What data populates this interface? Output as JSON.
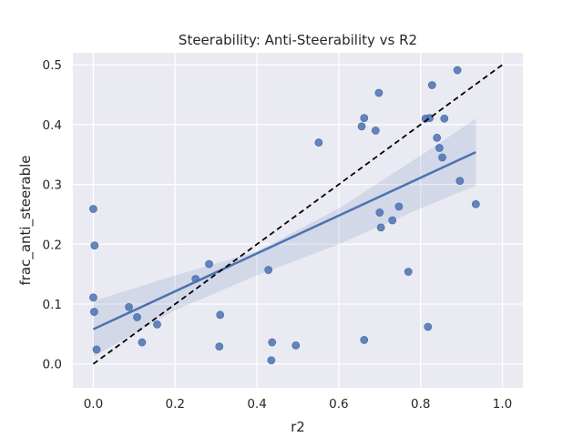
{
  "chart_data": {
    "type": "scatter",
    "title": "Steerability: Anti-Steerability vs R2",
    "xlabel": "r2",
    "ylabel": "frac_anti_steerable",
    "xlim": [
      -0.05,
      1.05
    ],
    "ylim": [
      -0.04,
      0.52
    ],
    "xticks": [
      0.0,
      0.2,
      0.4,
      0.6,
      0.8,
      1.0
    ],
    "xtick_labels": [
      "0.0",
      "0.2",
      "0.4",
      "0.6",
      "0.8",
      "1.0"
    ],
    "yticks": [
      0.0,
      0.1,
      0.2,
      0.3,
      0.4,
      0.5
    ],
    "ytick_labels": [
      "0.0",
      "0.1",
      "0.2",
      "0.3",
      "0.4",
      "0.5"
    ],
    "grid": true,
    "points": [
      {
        "x": 0.0,
        "y": 0.259
      },
      {
        "x": 0.003,
        "y": 0.198
      },
      {
        "x": 0.0,
        "y": 0.111
      },
      {
        "x": 0.002,
        "y": 0.087
      },
      {
        "x": 0.008,
        "y": 0.024
      },
      {
        "x": 0.087,
        "y": 0.095
      },
      {
        "x": 0.107,
        "y": 0.078
      },
      {
        "x": 0.119,
        "y": 0.036
      },
      {
        "x": 0.156,
        "y": 0.066
      },
      {
        "x": 0.25,
        "y": 0.142
      },
      {
        "x": 0.283,
        "y": 0.167
      },
      {
        "x": 0.31,
        "y": 0.082
      },
      {
        "x": 0.308,
        "y": 0.029
      },
      {
        "x": 0.428,
        "y": 0.157
      },
      {
        "x": 0.437,
        "y": 0.036
      },
      {
        "x": 0.435,
        "y": 0.006
      },
      {
        "x": 0.495,
        "y": 0.031
      },
      {
        "x": 0.551,
        "y": 0.37
      },
      {
        "x": 0.656,
        "y": 0.397
      },
      {
        "x": 0.662,
        "y": 0.411
      },
      {
        "x": 0.662,
        "y": 0.04
      },
      {
        "x": 0.69,
        "y": 0.39
      },
      {
        "x": 0.698,
        "y": 0.453
      },
      {
        "x": 0.7,
        "y": 0.253
      },
      {
        "x": 0.703,
        "y": 0.228
      },
      {
        "x": 0.731,
        "y": 0.24
      },
      {
        "x": 0.747,
        "y": 0.263
      },
      {
        "x": 0.77,
        "y": 0.154
      },
      {
        "x": 0.812,
        "y": 0.41
      },
      {
        "x": 0.822,
        "y": 0.411
      },
      {
        "x": 0.818,
        "y": 0.062
      },
      {
        "x": 0.828,
        "y": 0.466
      },
      {
        "x": 0.84,
        "y": 0.378
      },
      {
        "x": 0.846,
        "y": 0.361
      },
      {
        "x": 0.853,
        "y": 0.345
      },
      {
        "x": 0.858,
        "y": 0.41
      },
      {
        "x": 0.89,
        "y": 0.491
      },
      {
        "x": 0.896,
        "y": 0.306
      },
      {
        "x": 0.935,
        "y": 0.267
      }
    ],
    "regression": {
      "x": [
        0.0,
        0.935
      ],
      "y": [
        0.058,
        0.354
      ]
    },
    "confidence_band": {
      "x": [
        0.0,
        0.2,
        0.4,
        0.6,
        0.8,
        0.935
      ],
      "upper": [
        0.105,
        0.148,
        0.188,
        0.26,
        0.348,
        0.41
      ],
      "lower": [
        0.012,
        0.09,
        0.148,
        0.2,
        0.26,
        0.298
      ]
    },
    "reference_line": {
      "x": [
        0.0,
        1.0
      ],
      "y": [
        0.0,
        0.5
      ]
    },
    "colors": {
      "background": "#eaeaf2",
      "points": "#4c72b0",
      "regression": "#4c72b0",
      "reference": "#000000"
    }
  }
}
